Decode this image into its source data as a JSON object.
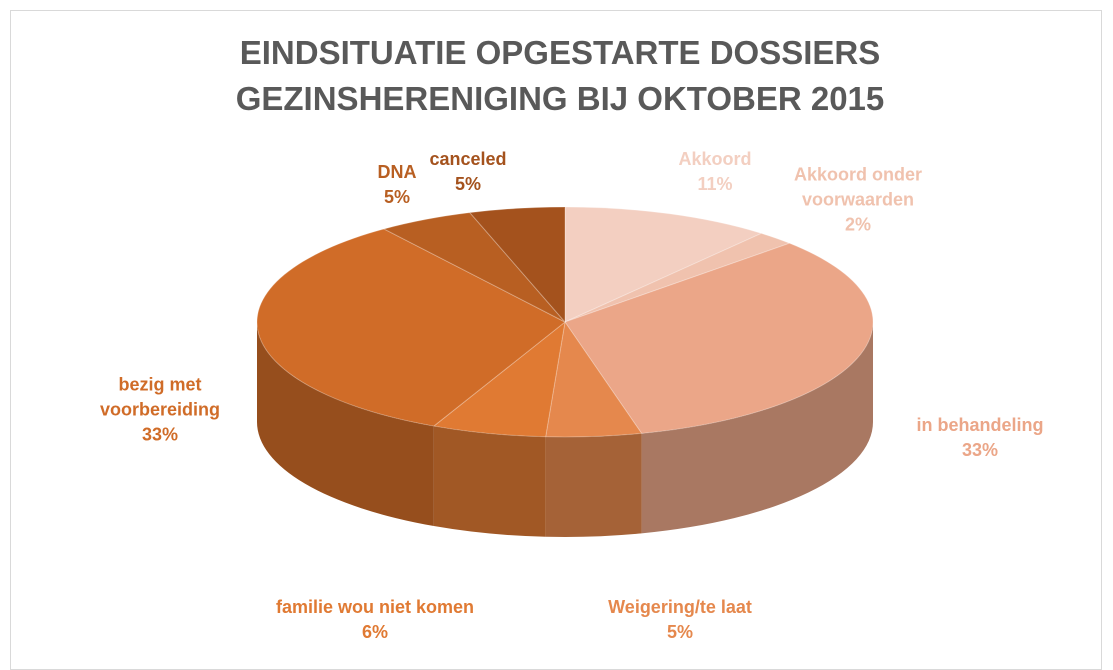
{
  "chart_data": {
    "type": "pie",
    "title": "EINDSITUATIE OPGESTARTE DOSSIERS GEZINSHERENIGING BIJ OKTOBER 2015",
    "categories": [
      "Akkoord",
      "Akkoord onder voorwaarden",
      "in behandeling",
      "Weigering/te laat",
      "familie wou niet komen",
      "bezig met voorbereiding",
      "DNA",
      "canceled"
    ],
    "values": [
      11,
      2,
      33,
      5,
      6,
      33,
      5,
      5
    ],
    "value_labels": [
      "11%",
      "2%",
      "33%",
      "5%",
      "6%",
      "33%",
      "5%",
      "5%"
    ],
    "colors": [
      "#f3cfc1",
      "#f0c2ae",
      "#eba688",
      "#e5884d",
      "#e07a33",
      "#d06c28",
      "#b85f22",
      "#a4521d"
    ]
  }
}
